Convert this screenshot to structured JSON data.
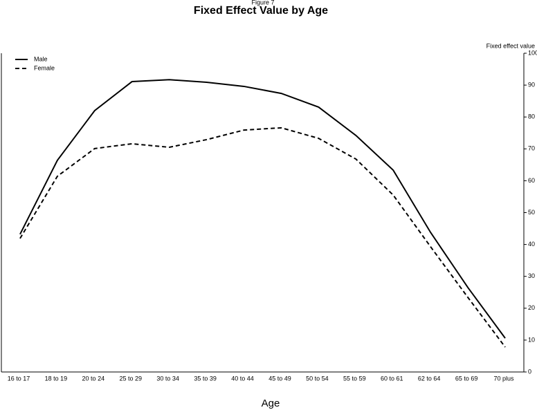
{
  "chart_data": {
    "type": "line",
    "subtitle": "Figure 7",
    "title": "Fixed Effect Value by Age",
    "y_label": "Fixed effect value",
    "x_label": "Age",
    "categories": [
      "16 to 17",
      "18 to 19",
      "20 to 24",
      "25 to 29",
      "30 to 34",
      "35 to 39",
      "40 to 44",
      "45 to 49",
      "50 to 54",
      "55 to 59",
      "60 to 61",
      "62 to 64",
      "65 to 69",
      "70 plus"
    ],
    "series": [
      {
        "name": "Male",
        "color": "#000000",
        "line_style": "solid",
        "values": [
          43.2,
          66.4,
          82.0,
          91.1,
          91.7,
          90.9,
          89.6,
          87.4,
          83.1,
          74.2,
          63.3,
          43.8,
          26.5,
          10.6
        ]
      },
      {
        "name": "Female",
        "color": "#000000",
        "line_style": "dashed",
        "values": [
          41.9,
          61.4,
          70.1,
          71.6,
          70.5,
          72.9,
          75.9,
          76.6,
          73.3,
          66.8,
          55.5,
          39.3,
          23.4,
          7.8
        ]
      }
    ],
    "ylim": [
      0,
      100
    ],
    "yticks": [
      0,
      10,
      20,
      30,
      40,
      50,
      60,
      70,
      80,
      90,
      100
    ],
    "y_axis_side": "right",
    "grid": false,
    "legend": "top-left"
  }
}
